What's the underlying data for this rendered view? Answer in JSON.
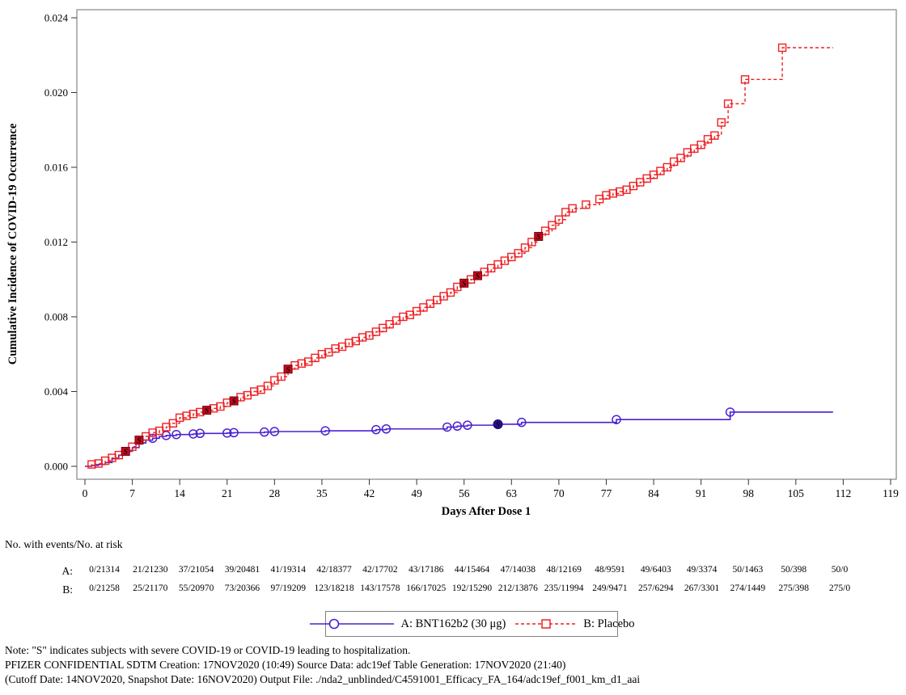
{
  "chart_data": {
    "type": "line",
    "subtype": "kaplan-meier-step",
    "title": "",
    "xlabel": "Days After Dose 1",
    "ylabel": "Cumulative Incidence of COVID-19 Occurrence",
    "xlim": [
      0,
      119
    ],
    "ylim": [
      0,
      0.024
    ],
    "x_ticks": [
      "0",
      "7",
      "14",
      "21",
      "28",
      "35",
      "42",
      "49",
      "56",
      "63",
      "70",
      "77",
      "84",
      "91",
      "98",
      "105",
      "112",
      "119"
    ],
    "y_ticks": [
      "0.000",
      "0.004",
      "0.008",
      "0.012",
      "0.016",
      "0.020",
      "0.024"
    ],
    "grid": false,
    "legend_position": "bottom",
    "series": [
      {
        "name": "A: BNT162b2 (30 μg)",
        "color": "#4a21d1",
        "line": "solid",
        "marker": "circle",
        "points": [
          [
            0,
            0
          ],
          [
            1,
            5e-05
          ],
          [
            2,
            0.0001
          ],
          [
            3,
            0.0002
          ],
          [
            4,
            0.0004
          ],
          [
            5,
            0.0006
          ],
          [
            6,
            0.0008
          ],
          [
            7,
            0.001
          ],
          [
            8,
            0.00125
          ],
          [
            9,
            0.0014
          ],
          [
            10,
            0.0015
          ],
          [
            11,
            0.0016
          ],
          [
            12,
            0.00165
          ],
          [
            13.5,
            0.0017
          ],
          [
            16,
            0.00173
          ],
          [
            17,
            0.00176
          ],
          [
            21,
            0.00178
          ],
          [
            22,
            0.0018
          ],
          [
            26.5,
            0.00183
          ],
          [
            28,
            0.00186
          ],
          [
            35.5,
            0.0019
          ],
          [
            43,
            0.00196
          ],
          [
            44.5,
            0.002
          ],
          [
            53.5,
            0.0021
          ],
          [
            55,
            0.00215
          ],
          [
            56.5,
            0.0022
          ],
          [
            61,
            0.00225
          ],
          [
            64.5,
            0.00235
          ],
          [
            78.5,
            0.0025
          ],
          [
            95.3,
            0.0029
          ],
          [
            110.5,
            0.0029
          ]
        ],
        "marker_days": [
          10,
          12,
          13.5,
          16,
          17,
          21,
          22,
          26.5,
          28,
          35.5,
          43,
          44.5,
          53.5,
          55,
          56.5,
          64.5,
          78.5,
          95.3
        ],
        "s_markers": [
          [
            61,
            0.00225
          ]
        ]
      },
      {
        "name": "B: Placebo",
        "color": "#ee2124",
        "line": "dashed",
        "marker": "square",
        "points": [
          [
            0,
            0
          ],
          [
            1,
            0.0001
          ],
          [
            2,
            0.00015
          ],
          [
            3,
            0.0003
          ],
          [
            4,
            0.00045
          ],
          [
            5,
            0.0006
          ],
          [
            6,
            0.0008
          ],
          [
            7,
            0.00105
          ],
          [
            8,
            0.0014
          ],
          [
            9,
            0.0016
          ],
          [
            10,
            0.0018
          ],
          [
            11,
            0.0019
          ],
          [
            12,
            0.0021
          ],
          [
            13,
            0.0023
          ],
          [
            14,
            0.0026
          ],
          [
            15,
            0.0027
          ],
          [
            16,
            0.0028
          ],
          [
            17,
            0.0029
          ],
          [
            18,
            0.003
          ],
          [
            19,
            0.0031
          ],
          [
            20,
            0.0032
          ],
          [
            21,
            0.0034
          ],
          [
            22,
            0.0035
          ],
          [
            23,
            0.0037
          ],
          [
            24,
            0.0038
          ],
          [
            25,
            0.004
          ],
          [
            26,
            0.0041
          ],
          [
            27,
            0.0043
          ],
          [
            28,
            0.0046
          ],
          [
            29,
            0.0048
          ],
          [
            30,
            0.0052
          ],
          [
            31,
            0.0054
          ],
          [
            32,
            0.0055
          ],
          [
            33,
            0.0056
          ],
          [
            34,
            0.0058
          ],
          [
            35,
            0.006
          ],
          [
            36,
            0.0061
          ],
          [
            37,
            0.0063
          ],
          [
            38,
            0.0064
          ],
          [
            39,
            0.0066
          ],
          [
            40,
            0.0067
          ],
          [
            41,
            0.0069
          ],
          [
            42,
            0.007
          ],
          [
            43,
            0.0072
          ],
          [
            44,
            0.0074
          ],
          [
            45,
            0.0076
          ],
          [
            46,
            0.0078
          ],
          [
            47,
            0.008
          ],
          [
            48,
            0.0081
          ],
          [
            49,
            0.0083
          ],
          [
            50,
            0.0085
          ],
          [
            51,
            0.0087
          ],
          [
            52,
            0.0089
          ],
          [
            53,
            0.0091
          ],
          [
            54,
            0.0093
          ],
          [
            55,
            0.0096
          ],
          [
            56,
            0.0098
          ],
          [
            57,
            0.01
          ],
          [
            58,
            0.0102
          ],
          [
            59,
            0.0104
          ],
          [
            60,
            0.0106
          ],
          [
            61,
            0.0108
          ],
          [
            62,
            0.011
          ],
          [
            63,
            0.0112
          ],
          [
            64,
            0.0114
          ],
          [
            65,
            0.0117
          ],
          [
            66,
            0.012
          ],
          [
            67,
            0.0123
          ],
          [
            68,
            0.0126
          ],
          [
            69,
            0.0129
          ],
          [
            70,
            0.0132
          ],
          [
            71,
            0.0136
          ],
          [
            72,
            0.0138
          ],
          [
            74,
            0.014
          ],
          [
            76,
            0.0143
          ],
          [
            77,
            0.0145
          ],
          [
            78,
            0.0146
          ],
          [
            79,
            0.0147
          ],
          [
            80,
            0.0148
          ],
          [
            81,
            0.015
          ],
          [
            82,
            0.0152
          ],
          [
            83,
            0.0154
          ],
          [
            84,
            0.0156
          ],
          [
            85,
            0.0158
          ],
          [
            86,
            0.016
          ],
          [
            87,
            0.0163
          ],
          [
            88,
            0.0165
          ],
          [
            89,
            0.0168
          ],
          [
            90,
            0.017
          ],
          [
            91,
            0.0172
          ],
          [
            92,
            0.0175
          ],
          [
            93,
            0.0177
          ],
          [
            94,
            0.0184
          ],
          [
            95,
            0.0194
          ],
          [
            97.5,
            0.0207
          ],
          [
            103,
            0.0224
          ],
          [
            110.5,
            0.0224
          ]
        ],
        "marker_days": "all",
        "s_markers": [
          [
            6,
            0.0008
          ],
          [
            8,
            0.0014
          ],
          [
            18,
            0.003
          ],
          [
            22,
            0.0035
          ],
          [
            30,
            0.0052
          ],
          [
            56,
            0.0098
          ],
          [
            58,
            0.0102
          ],
          [
            67,
            0.0123
          ]
        ]
      }
    ]
  },
  "risk_table": {
    "header": "No. with events/No. at risk",
    "row_labels": [
      "A:",
      "B:"
    ],
    "rows": [
      [
        "0/21314",
        "21/21230",
        "37/21054",
        "39/20481",
        "41/19314",
        "42/18377",
        "42/17702",
        "43/17186",
        "44/15464",
        "47/14038",
        "48/12169",
        "48/9591",
        "49/6403",
        "49/3374",
        "50/1463",
        "50/398",
        "50/0"
      ],
      [
        "0/21258",
        "25/21170",
        "55/20970",
        "73/20366",
        "97/19209",
        "123/18218",
        "143/17578",
        "166/17025",
        "192/15290",
        "212/13876",
        "235/11994",
        "249/9471",
        "257/6294",
        "267/3301",
        "274/1449",
        "275/398",
        "275/0"
      ]
    ]
  },
  "legend": {
    "items": [
      {
        "label": "A: BNT162b2 (30 μg)",
        "color": "#4a21d1",
        "marker": "circle",
        "line": "solid"
      },
      {
        "label": "B: Placebo",
        "color": "#ee2124",
        "marker": "square",
        "line": "dashed"
      }
    ]
  },
  "footnotes": {
    "line1": "Note: \"S\" indicates subjects with severe COVID-19 or COVID-19 leading to hospitalization.",
    "line2": "PFIZER CONFIDENTIAL  SDTM Creation: 17NOV2020 (10:49)  Source Data: adc19ef  Table Generation: 17NOV2020 (21:40)",
    "line3": "(Cutoff Date: 14NOV2020, Snapshot Date: 16NOV2020) Output File: ./nda2_unblinded/C4591001_Efficacy_FA_164/adc19ef_f001_km_d1_aai"
  },
  "colors": {
    "series_a": "#4a21d1",
    "series_b": "#ee2124",
    "s_fill_red": "#c30a1c",
    "s_fill_blue": "#2a0d9e",
    "frame": "#6e6e6e"
  }
}
